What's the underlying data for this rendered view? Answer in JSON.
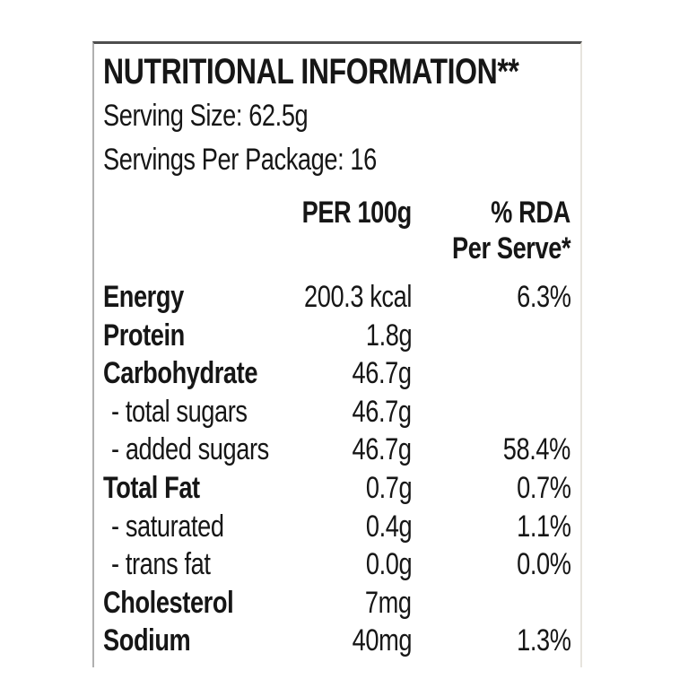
{
  "label": {
    "title": "NUTRITIONAL INFORMATION**",
    "serving_size": "Serving Size: 62.5g",
    "servings_per_package": "Servings Per Package: 16",
    "columns": {
      "per_100g": "PER 100g",
      "rda_line1": "% RDA",
      "rda_line2": "Per Serve*"
    },
    "rows": [
      {
        "name": "Energy",
        "bold": true,
        "indent": false,
        "per100g": "200.3 kcal",
        "rda": "6.3%"
      },
      {
        "name": "Protein",
        "bold": true,
        "indent": false,
        "per100g": "1.8g",
        "rda": ""
      },
      {
        "name": "Carbohydrate",
        "bold": true,
        "indent": false,
        "per100g": "46.7g",
        "rda": ""
      },
      {
        "name": "- total sugars",
        "bold": false,
        "indent": true,
        "per100g": "46.7g",
        "rda": ""
      },
      {
        "name": "- added sugars",
        "bold": false,
        "indent": true,
        "per100g": "46.7g",
        "rda": "58.4%"
      },
      {
        "name": "Total Fat",
        "bold": true,
        "indent": false,
        "per100g": "0.7g",
        "rda": "0.7%"
      },
      {
        "name": "- saturated",
        "bold": false,
        "indent": true,
        "per100g": "0.4g",
        "rda": "1.1%"
      },
      {
        "name": "- trans fat",
        "bold": false,
        "indent": true,
        "per100g": "0.0g",
        "rda": "0.0%"
      },
      {
        "name": "Cholesterol",
        "bold": true,
        "indent": false,
        "per100g": "7mg",
        "rda": ""
      },
      {
        "name": "Sodium",
        "bold": true,
        "indent": false,
        "per100g": "40mg",
        "rda": "1.3%"
      }
    ],
    "colors": {
      "text": "#161616",
      "border_top": "#4e4e4e",
      "border_left": "#b0b0b0",
      "border_right": "#e7e4de",
      "background": "#ffffff"
    }
  }
}
